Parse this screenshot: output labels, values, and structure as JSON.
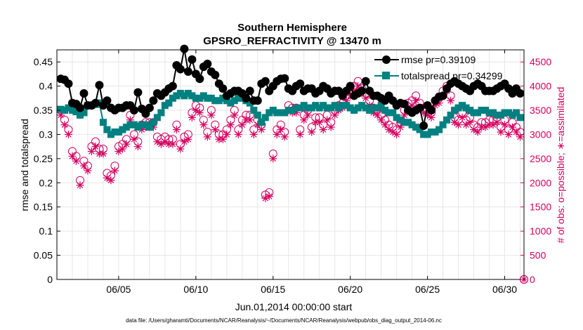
{
  "chart_data": {
    "type": "line",
    "title": "Southern Hemisphere",
    "subtitle": "GPSRO_REFRACTIVITY @ 13470 m",
    "xlabel": "Jun.01,2014 00:00:00 start",
    "ylabel": "rmse and totalspread",
    "ylabel_right": "# of obs: o=possible; ∗=assimilated",
    "footer": "data file: /Users/gharamti/Documents/NCAR/Reanalysis/~/Documents/NCAR/Reanalysis/webpub/obs_diag_output_2014-06.nc",
    "xlim": [
      1.0,
      31.25
    ],
    "ylim": [
      0,
      0.475
    ],
    "ylim_right": [
      0,
      4750
    ],
    "x_ticks": [
      5,
      10,
      15,
      20,
      25,
      30
    ],
    "x_tick_labels": [
      "06/05",
      "06/10",
      "06/15",
      "06/20",
      "06/25",
      "06/30"
    ],
    "y_ticks": [
      0,
      0.05,
      0.1,
      0.15,
      0.2,
      0.25,
      0.3,
      0.35,
      0.4,
      0.45
    ],
    "y_tick_labels": [
      "0",
      "0.05",
      "0.1",
      "0.15",
      "0.2",
      "0.25",
      "0.3",
      "0.35",
      "0.4",
      "0.45"
    ],
    "y_ticks_right": [
      0,
      500,
      1000,
      1500,
      2000,
      2500,
      3000,
      3500,
      4000,
      4500
    ],
    "y_tick_labels_right": [
      "0",
      "500",
      "1000",
      "1500",
      "2000",
      "2500",
      "3000",
      "3500",
      "4000",
      "4500"
    ],
    "grid": true,
    "legend_position": "top-right",
    "legend": [
      {
        "label": "rmse pr=0.39109",
        "color": "#000000",
        "marker": "circle"
      },
      {
        "label": "totalspread pr=0.34299",
        "color": "#008080",
        "marker": "square"
      }
    ],
    "series": [
      {
        "name": "rmse",
        "color": "#000000",
        "x": [
          1.25,
          1.5,
          1.75,
          2.0,
          2.25,
          2.5,
          2.75,
          3.0,
          3.25,
          3.5,
          3.75,
          4.0,
          4.25,
          4.5,
          4.75,
          5.0,
          5.25,
          5.5,
          5.75,
          6.0,
          6.25,
          6.5,
          6.75,
          7.0,
          7.25,
          7.5,
          7.75,
          8.0,
          8.25,
          8.5,
          8.75,
          9.0,
          9.25,
          9.5,
          9.75,
          10.0,
          10.25,
          10.5,
          10.75,
          11.0,
          11.25,
          11.5,
          11.75,
          12.0,
          12.25,
          12.5,
          12.75,
          13.0,
          13.25,
          13.5,
          13.75,
          14.0,
          14.25,
          14.5,
          14.75,
          15.0,
          15.25,
          15.5,
          15.75,
          16.0,
          16.25,
          16.5,
          16.75,
          17.0,
          17.25,
          17.5,
          17.75,
          18.0,
          18.25,
          18.5,
          18.75,
          19.0,
          19.25,
          19.5,
          19.75,
          20.0,
          20.25,
          20.5,
          20.75,
          21.0,
          21.25,
          21.5,
          21.75,
          22.0,
          22.25,
          22.5,
          22.75,
          23.0,
          23.25,
          23.5,
          23.75,
          24.0,
          24.25,
          24.5,
          24.75,
          25.0,
          25.25,
          25.5,
          25.75,
          26.0,
          26.25,
          26.5,
          26.75,
          27.0,
          27.25,
          27.5,
          27.75,
          28.0,
          28.25,
          28.5,
          28.75,
          29.0,
          29.25,
          29.5,
          29.75,
          30.0,
          30.25,
          30.5,
          30.75,
          31.0
        ],
        "values": [
          0.415,
          0.413,
          0.405,
          0.365,
          0.363,
          0.355,
          0.385,
          0.36,
          0.36,
          0.365,
          0.402,
          0.36,
          0.37,
          0.355,
          0.35,
          0.355,
          0.355,
          0.36,
          0.36,
          0.35,
          0.387,
          0.353,
          0.343,
          0.355,
          0.37,
          0.385,
          0.38,
          0.387,
          0.395,
          0.4,
          0.443,
          0.435,
          0.477,
          0.43,
          0.455,
          0.425,
          0.415,
          0.44,
          0.446,
          0.43,
          0.423,
          0.405,
          0.395,
          0.38,
          0.385,
          0.39,
          0.39,
          0.385,
          0.375,
          0.39,
          0.37,
          0.37,
          0.405,
          0.41,
          0.39,
          0.4,
          0.41,
          0.415,
          0.416,
          0.395,
          0.39,
          0.4,
          0.405,
          0.39,
          0.395,
          0.395,
          0.385,
          0.39,
          0.4,
          0.395,
          0.385,
          0.39,
          0.39,
          0.38,
          0.39,
          0.4,
          0.38,
          0.385,
          0.39,
          0.41,
          0.39,
          0.38,
          0.38,
          0.375,
          0.37,
          0.38,
          0.37,
          0.36,
          0.365,
          0.363,
          0.35,
          0.345,
          0.35,
          0.355,
          0.318,
          0.36,
          0.35,
          0.37,
          0.378,
          0.38,
          0.395,
          0.405,
          0.41,
          0.405,
          0.4,
          0.395,
          0.39,
          0.4,
          0.405,
          0.4,
          0.39,
          0.39,
          0.39,
          0.395,
          0.4,
          0.405,
          0.395,
          0.385,
          0.395,
          0.385
        ]
      },
      {
        "name": "totalspread",
        "color": "#008080",
        "x": [
          1.25,
          1.5,
          1.75,
          2.0,
          2.25,
          2.5,
          2.75,
          3.0,
          3.25,
          3.5,
          3.75,
          4.0,
          4.25,
          4.5,
          4.75,
          5.0,
          5.25,
          5.5,
          5.75,
          6.0,
          6.25,
          6.5,
          6.75,
          7.0,
          7.25,
          7.5,
          7.75,
          8.0,
          8.25,
          8.5,
          8.75,
          9.0,
          9.25,
          9.5,
          9.75,
          10.0,
          10.25,
          10.5,
          10.75,
          11.0,
          11.25,
          11.5,
          11.75,
          12.0,
          12.25,
          12.5,
          12.75,
          13.0,
          13.25,
          13.5,
          13.75,
          14.0,
          14.25,
          14.5,
          14.75,
          15.0,
          15.25,
          15.5,
          15.75,
          16.0,
          16.25,
          16.5,
          16.75,
          17.0,
          17.25,
          17.5,
          17.75,
          18.0,
          18.25,
          18.5,
          18.75,
          19.0,
          19.25,
          19.5,
          19.75,
          20.0,
          20.25,
          20.5,
          20.75,
          21.0,
          21.25,
          21.5,
          21.75,
          22.0,
          22.25,
          22.5,
          22.75,
          23.0,
          23.25,
          23.5,
          23.75,
          24.0,
          24.25,
          24.5,
          24.75,
          25.0,
          25.25,
          25.5,
          25.75,
          26.0,
          26.25,
          26.5,
          26.75,
          27.0,
          27.25,
          27.5,
          27.75,
          28.0,
          28.25,
          28.5,
          28.75,
          29.0,
          29.25,
          29.5,
          29.75,
          30.0,
          30.25,
          30.5,
          30.75,
          31.0
        ],
        "values": [
          0.352,
          0.35,
          0.355,
          0.35,
          0.347,
          0.34,
          0.345,
          0.36,
          0.36,
          0.362,
          0.365,
          0.325,
          0.31,
          0.3,
          0.305,
          0.305,
          0.31,
          0.315,
          0.32,
          0.32,
          0.315,
          0.32,
          0.32,
          0.315,
          0.325,
          0.335,
          0.345,
          0.36,
          0.365,
          0.375,
          0.38,
          0.385,
          0.38,
          0.385,
          0.38,
          0.375,
          0.375,
          0.38,
          0.375,
          0.375,
          0.37,
          0.37,
          0.375,
          0.37,
          0.365,
          0.37,
          0.375,
          0.375,
          0.37,
          0.365,
          0.35,
          0.34,
          0.325,
          0.335,
          0.345,
          0.35,
          0.345,
          0.345,
          0.345,
          0.35,
          0.35,
          0.355,
          0.355,
          0.36,
          0.355,
          0.355,
          0.36,
          0.355,
          0.36,
          0.355,
          0.355,
          0.36,
          0.355,
          0.36,
          0.36,
          0.355,
          0.35,
          0.355,
          0.36,
          0.355,
          0.35,
          0.355,
          0.355,
          0.36,
          0.35,
          0.345,
          0.345,
          0.335,
          0.33,
          0.325,
          0.325,
          0.32,
          0.315,
          0.31,
          0.3,
          0.3,
          0.305,
          0.305,
          0.31,
          0.32,
          0.33,
          0.34,
          0.35,
          0.355,
          0.36,
          0.355,
          0.35,
          0.345,
          0.345,
          0.35,
          0.35,
          0.345,
          0.345,
          0.34,
          0.34,
          0.345,
          0.345,
          0.34,
          0.345,
          0.335
        ]
      },
      {
        "name": "possible",
        "color": "#d4005f",
        "axis": "right",
        "x": [
          1.25,
          1.5,
          1.75,
          2.0,
          2.25,
          2.5,
          2.75,
          3.0,
          3.25,
          3.5,
          3.75,
          4.0,
          4.25,
          4.5,
          4.75,
          5.0,
          5.25,
          5.5,
          5.75,
          6.0,
          6.25,
          6.5,
          6.75,
          7.0,
          7.25,
          7.5,
          7.75,
          8.0,
          8.25,
          8.5,
          8.75,
          9.0,
          9.25,
          9.5,
          9.75,
          10.0,
          10.25,
          10.5,
          10.75,
          11.0,
          11.25,
          11.5,
          11.75,
          12.0,
          12.25,
          12.5,
          12.75,
          13.0,
          13.25,
          13.5,
          13.75,
          14.0,
          14.25,
          14.5,
          14.75,
          15.0,
          15.25,
          15.5,
          15.75,
          16.0,
          16.25,
          16.5,
          16.75,
          17.0,
          17.25,
          17.5,
          17.75,
          18.0,
          18.25,
          18.5,
          18.75,
          19.0,
          19.25,
          19.5,
          19.75,
          20.0,
          20.25,
          20.5,
          20.75,
          21.0,
          21.25,
          21.5,
          21.75,
          22.0,
          22.25,
          22.5,
          22.75,
          23.0,
          23.25,
          23.5,
          23.75,
          24.0,
          24.25,
          24.5,
          24.75,
          25.0,
          25.25,
          25.5,
          25.75,
          26.0,
          26.25,
          26.5,
          26.75,
          27.0,
          27.25,
          27.5,
          27.75,
          28.0,
          28.25,
          28.5,
          28.75,
          29.0,
          29.25,
          29.5,
          29.75,
          30.0,
          30.25,
          30.5,
          30.75,
          31.0
        ],
        "values": [
          3500,
          3300,
          3100,
          2650,
          2550,
          2050,
          2450,
          2350,
          2750,
          2850,
          2700,
          2700,
          2200,
          2150,
          2350,
          2750,
          2800,
          2900,
          3400,
          3000,
          2850,
          3200,
          3250,
          3250,
          3250,
          2950,
          2900,
          2950,
          2900,
          2900,
          3200,
          2800,
          2950,
          3000,
          3450,
          3600,
          3550,
          3300,
          3050,
          3500,
          3200,
          3000,
          3000,
          3100,
          3300,
          3500,
          3100,
          3300,
          3400,
          3400,
          3100,
          3300,
          3200,
          1750,
          1800,
          2600,
          3100,
          3200,
          3050,
          3600,
          3550,
          3550,
          3100,
          3400,
          3500,
          3150,
          3350,
          3350,
          3200,
          3400,
          3250,
          3500,
          3600,
          3650,
          3800,
          3900,
          4000,
          4100,
          3950,
          3850,
          3700,
          3550,
          3500,
          3400,
          3300,
          3200,
          3150,
          3100,
          3250,
          3500,
          3650,
          3700,
          3800,
          3650,
          3550,
          3500,
          3450,
          3700,
          3750,
          3900,
          4000,
          3800,
          3350,
          3300,
          3450,
          3300,
          3350,
          3200,
          3150,
          3250,
          3250,
          3300,
          3300,
          3350,
          3150,
          3300,
          3100,
          3250,
          3150,
          3050
        ]
      },
      {
        "name": "assimilated",
        "color": "#d4005f",
        "axis": "right",
        "x": [
          1.25,
          1.5,
          1.75,
          2.0,
          2.25,
          2.5,
          2.75,
          3.0,
          3.25,
          3.5,
          3.75,
          4.0,
          4.25,
          4.5,
          4.75,
          5.0,
          5.25,
          5.5,
          5.75,
          6.0,
          6.25,
          6.5,
          6.75,
          7.0,
          7.25,
          7.5,
          7.75,
          8.0,
          8.25,
          8.5,
          8.75,
          9.0,
          9.25,
          9.5,
          9.75,
          10.0,
          10.25,
          10.5,
          10.75,
          11.0,
          11.25,
          11.5,
          11.75,
          12.0,
          12.25,
          12.5,
          12.75,
          13.0,
          13.25,
          13.5,
          13.75,
          14.0,
          14.25,
          14.5,
          14.75,
          15.0,
          15.25,
          15.5,
          15.75,
          16.0,
          16.25,
          16.5,
          16.75,
          17.0,
          17.25,
          17.5,
          17.75,
          18.0,
          18.25,
          18.5,
          18.75,
          19.0,
          19.25,
          19.5,
          19.75,
          20.0,
          20.25,
          20.5,
          20.75,
          21.0,
          21.25,
          21.5,
          21.75,
          22.0,
          22.25,
          22.5,
          22.75,
          23.0,
          23.25,
          23.5,
          23.75,
          24.0,
          24.25,
          24.5,
          24.75,
          25.0,
          25.25,
          25.5,
          25.75,
          26.0,
          26.25,
          26.5,
          26.75,
          27.0,
          27.25,
          27.5,
          27.75,
          28.0,
          28.25,
          28.5,
          28.75,
          29.0,
          29.25,
          29.5,
          29.75,
          30.0,
          30.25,
          30.5,
          30.75,
          31.0
        ],
        "values": [
          3400,
          3200,
          3000,
          2550,
          2450,
          1950,
          2350,
          2250,
          2650,
          2750,
          2600,
          2600,
          2100,
          2050,
          2250,
          2650,
          2700,
          2800,
          3300,
          2900,
          2750,
          3100,
          3150,
          3150,
          3150,
          2850,
          2800,
          2850,
          2800,
          2800,
          3100,
          2700,
          2850,
          2900,
          3350,
          3500,
          3450,
          3200,
          2950,
          3400,
          3100,
          2900,
          2900,
          3000,
          3200,
          3400,
          3000,
          3200,
          3300,
          3300,
          3000,
          3200,
          3100,
          1680,
          1720,
          2500,
          3000,
          3100,
          2950,
          3500,
          3450,
          3450,
          3000,
          3300,
          3400,
          3050,
          3250,
          3250,
          3100,
          3300,
          3150,
          3400,
          3500,
          3550,
          3700,
          3800,
          3900,
          4000,
          3850,
          3750,
          3600,
          3450,
          3400,
          3300,
          3200,
          3100,
          3050,
          3000,
          3150,
          3400,
          3550,
          3600,
          3700,
          3550,
          3450,
          3400,
          3350,
          3600,
          3650,
          3800,
          3900,
          3700,
          3250,
          3200,
          3350,
          3200,
          3250,
          3100,
          3050,
          3150,
          3150,
          3200,
          3200,
          3250,
          3050,
          3200,
          3000,
          3150,
          3050,
          2950
        ]
      }
    ]
  }
}
